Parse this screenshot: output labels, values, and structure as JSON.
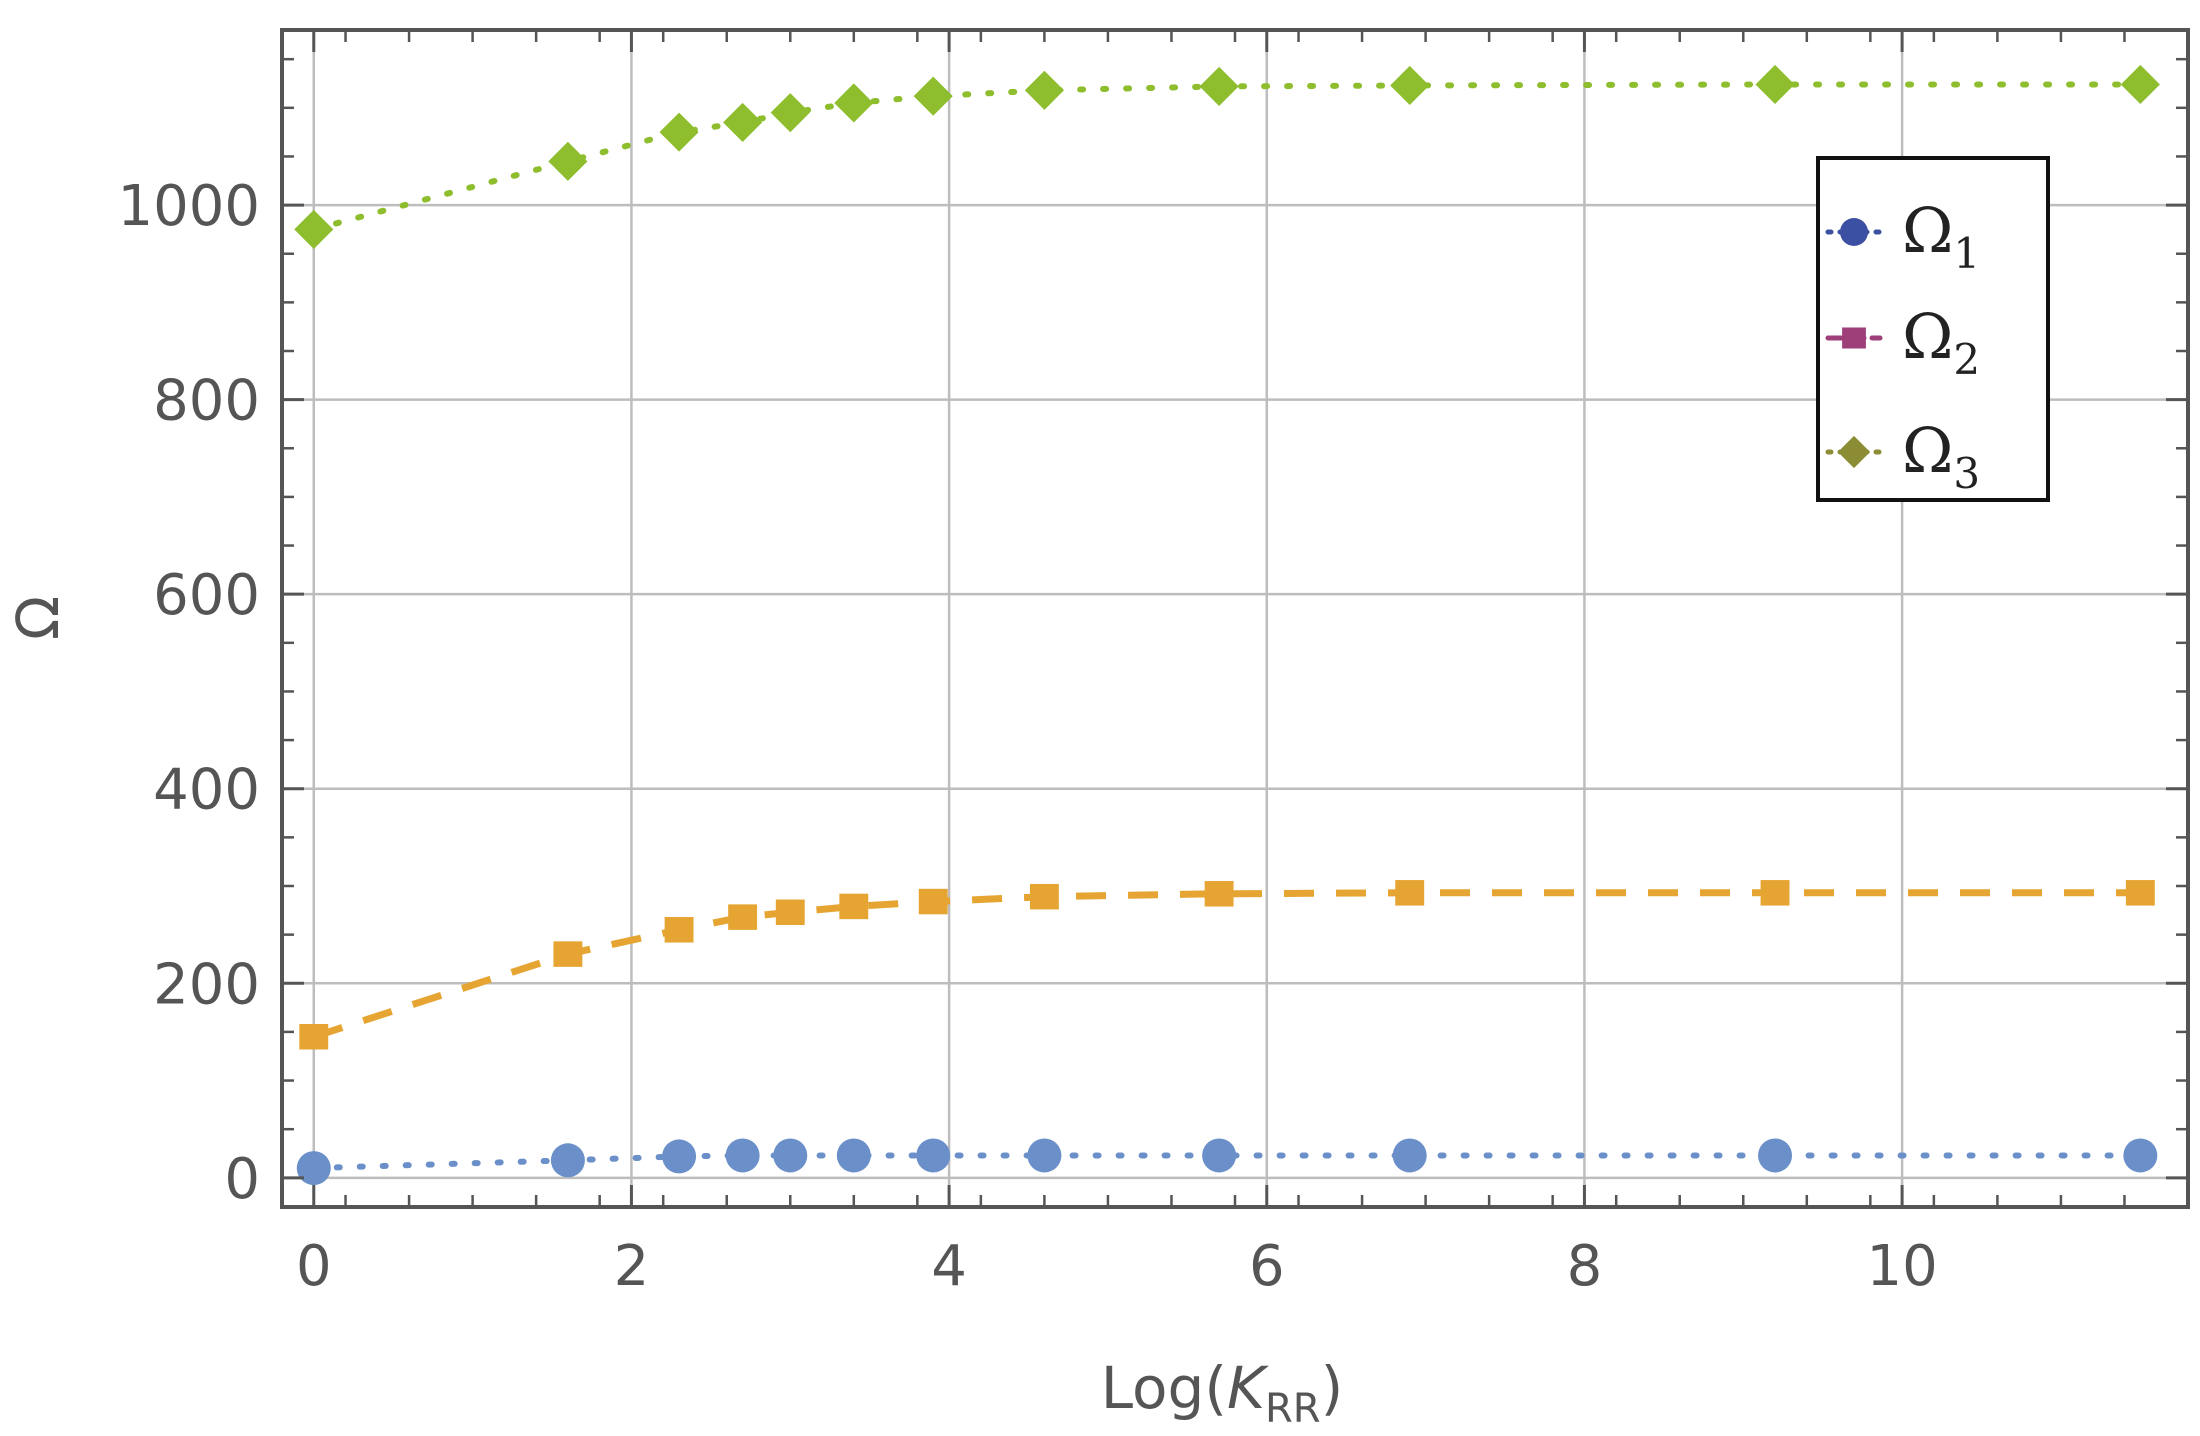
{
  "chart_data": {
    "type": "line",
    "title": "",
    "xlabel": {
      "base": "Log(",
      "italic": "K",
      "sub": "RR",
      "close": ")"
    },
    "ylabel": "Ω",
    "xlim": [
      -0.2,
      11.8
    ],
    "ylim": [
      -30,
      1180
    ],
    "xticks": [
      0,
      2,
      4,
      6,
      8,
      10
    ],
    "yticks": [
      0,
      200,
      400,
      600,
      800,
      1000
    ],
    "grid": true,
    "legend_position": "top-right",
    "x": [
      0,
      1.6,
      2.3,
      2.7,
      3.0,
      3.4,
      3.9,
      4.6,
      5.7,
      6.9,
      9.2,
      11.5
    ],
    "series": [
      {
        "name": "Ω",
        "sub": "1",
        "marker": "circle",
        "line": "dotted",
        "color": "#6a8fc9",
        "legend_color": "#3b4fa3",
        "values": [
          10,
          18,
          22,
          23,
          23,
          23,
          23,
          23,
          23,
          23,
          23,
          23
        ]
      },
      {
        "name": "Ω",
        "sub": "2",
        "marker": "square",
        "line": "dashed",
        "color": "#e6a532",
        "legend_color": "#9e3f7a",
        "values": [
          145,
          230,
          255,
          268,
          273,
          279,
          284,
          289,
          292,
          293,
          293,
          293
        ]
      },
      {
        "name": "Ω",
        "sub": "3",
        "marker": "diamond",
        "line": "dotted",
        "color": "#8ebd2e",
        "legend_color": "#8c8c35",
        "values": [
          975,
          1045,
          1075,
          1085,
          1095,
          1105,
          1112,
          1118,
          1122,
          1123,
          1124,
          1124
        ]
      }
    ]
  }
}
